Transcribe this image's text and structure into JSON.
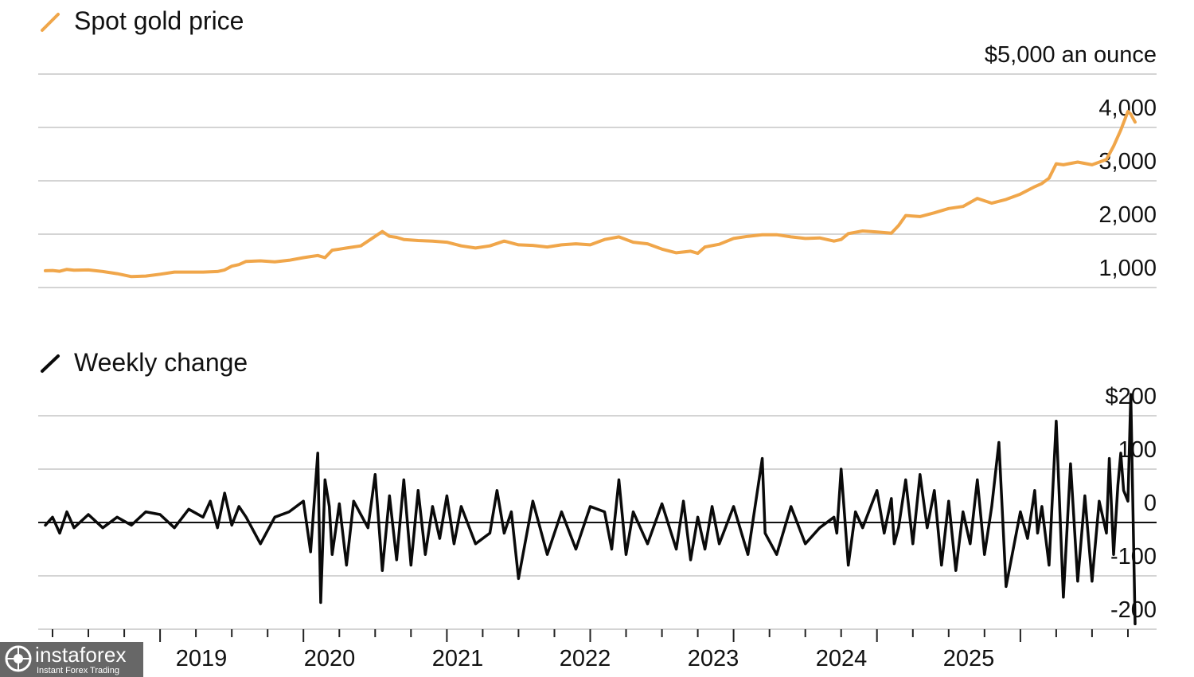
{
  "chart_data": [
    {
      "type": "line",
      "title": "Spot gold price",
      "unit_label": "$5,000 an ounce",
      "legend": "Spot gold price",
      "color": "#f0a64a",
      "y_ticks": [
        "4,000",
        "3,000",
        "2,000",
        "1,000"
      ],
      "y_tick_values": [
        4000,
        3000,
        2000,
        1000
      ],
      "ylim": [
        0,
        5000
      ],
      "x_labels": [
        "2019",
        "2020",
        "2021",
        "2022",
        "2023",
        "2024",
        "2025"
      ],
      "xlim": [
        2018.15,
        2025.95
      ],
      "grid": true,
      "series": [
        {
          "name": "Spot gold price",
          "x": [
            2018.2,
            2018.25,
            2018.3,
            2018.35,
            2018.4,
            2018.5,
            2018.6,
            2018.7,
            2018.8,
            2018.9,
            2019.0,
            2019.1,
            2019.2,
            2019.3,
            2019.4,
            2019.45,
            2019.5,
            2019.55,
            2019.6,
            2019.7,
            2019.8,
            2019.9,
            2020.0,
            2020.05,
            2020.1,
            2020.15,
            2020.2,
            2020.25,
            2020.3,
            2020.4,
            2020.5,
            2020.55,
            2020.6,
            2020.65,
            2020.7,
            2020.8,
            2020.9,
            2021.0,
            2021.1,
            2021.2,
            2021.3,
            2021.4,
            2021.5,
            2021.6,
            2021.7,
            2021.8,
            2021.9,
            2022.0,
            2022.1,
            2022.2,
            2022.3,
            2022.4,
            2022.5,
            2022.6,
            2022.7,
            2022.75,
            2022.8,
            2022.9,
            2023.0,
            2023.1,
            2023.2,
            2023.3,
            2023.4,
            2023.5,
            2023.6,
            2023.7,
            2023.75,
            2023.8,
            2023.9,
            2024.0,
            2024.1,
            2024.15,
            2024.2,
            2024.3,
            2024.4,
            2024.5,
            2024.6,
            2024.7,
            2024.8,
            2024.9,
            2025.0,
            2025.1,
            2025.15,
            2025.2,
            2025.25,
            2025.3,
            2025.4,
            2025.5,
            2025.6,
            2025.65,
            2025.7,
            2025.75,
            2025.77,
            2025.8
          ],
          "y": [
            1315,
            1320,
            1305,
            1340,
            1325,
            1330,
            1300,
            1260,
            1205,
            1215,
            1250,
            1290,
            1290,
            1290,
            1300,
            1330,
            1400,
            1430,
            1490,
            1500,
            1480,
            1510,
            1560,
            1580,
            1600,
            1560,
            1700,
            1720,
            1740,
            1780,
            1960,
            2050,
            1960,
            1940,
            1900,
            1880,
            1870,
            1850,
            1780,
            1740,
            1780,
            1870,
            1800,
            1790,
            1760,
            1800,
            1820,
            1800,
            1900,
            1950,
            1850,
            1820,
            1720,
            1650,
            1680,
            1640,
            1760,
            1810,
            1920,
            1960,
            1990,
            1990,
            1950,
            1920,
            1930,
            1870,
            1900,
            2010,
            2060,
            2040,
            2020,
            2160,
            2350,
            2330,
            2400,
            2480,
            2520,
            2670,
            2580,
            2650,
            2750,
            2890,
            2950,
            3050,
            3320,
            3300,
            3350,
            3300,
            3400,
            3650,
            3950,
            4300,
            4250,
            4100
          ]
        }
      ]
    },
    {
      "type": "line",
      "title": "Weekly change",
      "legend": "Weekly change",
      "color": "#0a0a0a",
      "y_ticks": [
        "$200",
        "100",
        "0",
        "-100",
        "-200"
      ],
      "y_tick_values": [
        200,
        100,
        0,
        -100,
        -200
      ],
      "ylim": [
        -200,
        200
      ],
      "x_labels": [
        "2019",
        "2020",
        "2021",
        "2022",
        "2023",
        "2024",
        "2025"
      ],
      "xlim": [
        2018.15,
        2025.95
      ],
      "grid": true,
      "series": [
        {
          "name": "Weekly change",
          "x": [
            2018.2,
            2018.25,
            2018.3,
            2018.35,
            2018.4,
            2018.5,
            2018.6,
            2018.7,
            2018.8,
            2018.9,
            2019.0,
            2019.1,
            2019.2,
            2019.3,
            2019.35,
            2019.4,
            2019.45,
            2019.5,
            2019.55,
            2019.6,
            2019.7,
            2019.8,
            2019.9,
            2020.0,
            2020.05,
            2020.1,
            2020.12,
            2020.15,
            2020.18,
            2020.2,
            2020.25,
            2020.3,
            2020.35,
            2020.4,
            2020.45,
            2020.5,
            2020.55,
            2020.6,
            2020.65,
            2020.7,
            2020.75,
            2020.8,
            2020.85,
            2020.9,
            2020.95,
            2021.0,
            2021.05,
            2021.1,
            2021.2,
            2021.3,
            2021.35,
            2021.4,
            2021.45,
            2021.5,
            2021.6,
            2021.7,
            2021.8,
            2021.9,
            2022.0,
            2022.1,
            2022.15,
            2022.2,
            2022.25,
            2022.3,
            2022.4,
            2022.5,
            2022.6,
            2022.65,
            2022.7,
            2022.75,
            2022.8,
            2022.85,
            2022.9,
            2023.0,
            2023.1,
            2023.2,
            2023.22,
            2023.3,
            2023.4,
            2023.5,
            2023.6,
            2023.7,
            2023.72,
            2023.75,
            2023.8,
            2023.85,
            2023.9,
            2024.0,
            2024.05,
            2024.1,
            2024.12,
            2024.15,
            2024.2,
            2024.25,
            2024.3,
            2024.35,
            2024.4,
            2024.45,
            2024.5,
            2024.55,
            2024.6,
            2024.65,
            2024.7,
            2024.75,
            2024.8,
            2024.85,
            2024.9,
            2025.0,
            2025.05,
            2025.1,
            2025.12,
            2025.15,
            2025.2,
            2025.25,
            2025.3,
            2025.35,
            2025.4,
            2025.45,
            2025.5,
            2025.55,
            2025.6,
            2025.62,
            2025.65,
            2025.68,
            2025.7,
            2025.72,
            2025.75,
            2025.77,
            2025.8
          ],
          "y": [
            -5,
            10,
            -20,
            20,
            -10,
            15,
            -10,
            10,
            -5,
            20,
            15,
            -10,
            25,
            10,
            40,
            -10,
            55,
            -5,
            30,
            10,
            -40,
            10,
            20,
            40,
            -55,
            130,
            -150,
            80,
            30,
            -60,
            35,
            -80,
            40,
            15,
            -10,
            90,
            -90,
            50,
            -70,
            80,
            -80,
            60,
            -60,
            30,
            -30,
            50,
            -40,
            30,
            -40,
            -20,
            60,
            -20,
            20,
            -105,
            40,
            -60,
            20,
            -50,
            30,
            20,
            -50,
            80,
            -60,
            20,
            -40,
            35,
            -50,
            40,
            -70,
            10,
            -50,
            30,
            -40,
            30,
            -60,
            120,
            -20,
            -60,
            30,
            -40,
            -10,
            10,
            -20,
            100,
            -80,
            20,
            -10,
            60,
            -20,
            45,
            -40,
            -10,
            80,
            -40,
            90,
            -10,
            60,
            -80,
            40,
            -90,
            20,
            -40,
            80,
            -60,
            30,
            150,
            -120,
            20,
            -30,
            60,
            -20,
            30,
            -80,
            190,
            -140,
            110,
            -110,
            50,
            -110,
            40,
            -20,
            120,
            -60,
            70,
            130,
            60,
            40,
            240,
            -190
          ]
        }
      ]
    }
  ],
  "watermark": {
    "name": "instaforex",
    "tagline": "Instant Forex Trading"
  }
}
